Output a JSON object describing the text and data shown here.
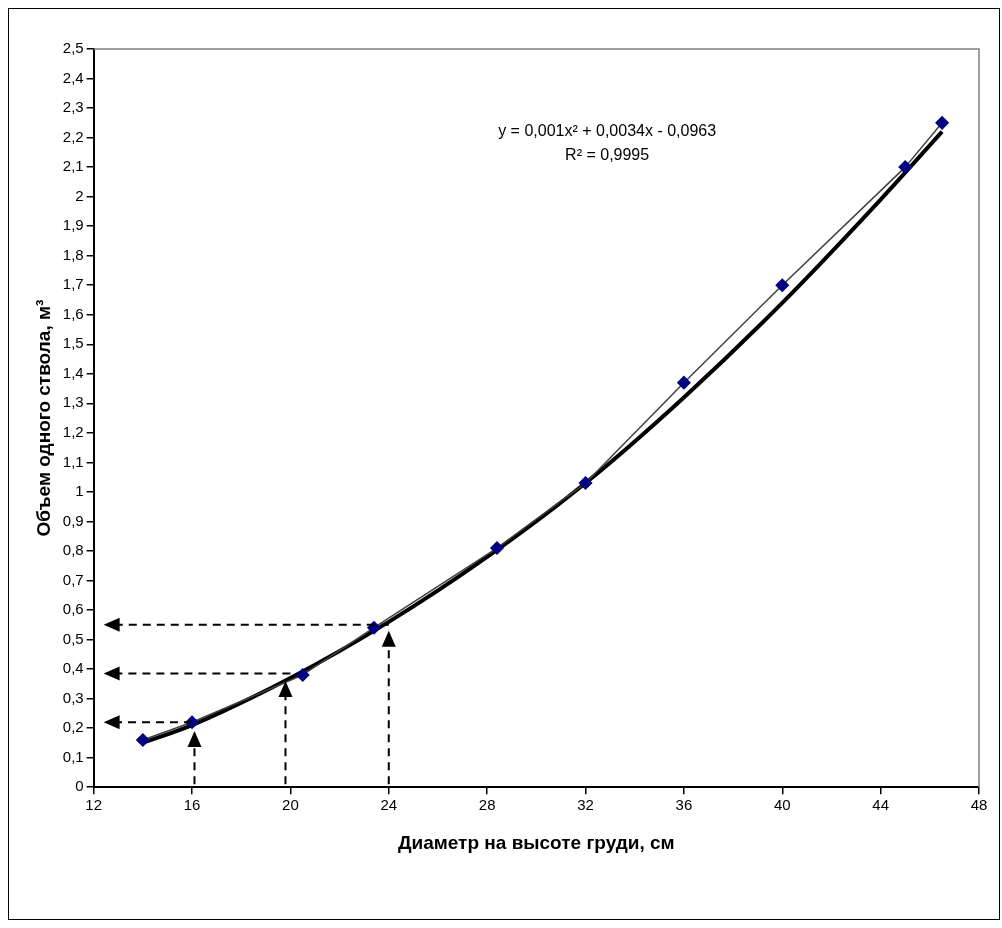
{
  "chart_data": {
    "type": "line",
    "xlabel": "Диаметр на высоте груди, см",
    "ylabel": "Объем одного ствола, м³",
    "xlim": [
      12,
      48
    ],
    "xticks": [
      12,
      16,
      20,
      24,
      28,
      32,
      36,
      40,
      44,
      48
    ],
    "ylim": [
      0,
      2.5
    ],
    "yticks": [
      0,
      {
        "value": 0.1,
        "label": "0,1"
      },
      {
        "value": 0.2,
        "label": "0,2"
      },
      {
        "value": 0.3,
        "label": "0,3"
      },
      {
        "value": 0.4,
        "label": "0,4"
      },
      {
        "value": 0.5,
        "label": "0,5"
      },
      {
        "value": 0.6,
        "label": "0,6"
      },
      {
        "value": 0.7,
        "label": "0,7"
      },
      {
        "value": 0.8,
        "label": "0,8"
      },
      {
        "value": 0.9,
        "label": "0,9"
      },
      1,
      {
        "value": 1.1,
        "label": "1,1"
      },
      {
        "value": 1.2,
        "label": "1,2"
      },
      {
        "value": 1.3,
        "label": "1,3"
      },
      {
        "value": 1.4,
        "label": "1,4"
      },
      {
        "value": 1.5,
        "label": "1,5"
      },
      {
        "value": 1.6,
        "label": "1,6"
      },
      {
        "value": 1.7,
        "label": "1,7"
      },
      {
        "value": 1.8,
        "label": "1,8"
      },
      {
        "value": 1.9,
        "label": "1,9"
      },
      2,
      {
        "value": 2.1,
        "label": "2,1"
      },
      {
        "value": 2.2,
        "label": "2,2"
      },
      {
        "value": 2.3,
        "label": "2,3"
      },
      {
        "value": 2.4,
        "label": "2,4"
      },
      {
        "value": 2.5,
        "label": "2,5"
      }
    ],
    "grid": false,
    "legend": false,
    "series": [
      {
        "color": "#000080",
        "marker": "diamond",
        "x": [
          14,
          16,
          20.5,
          23.4,
          28.4,
          32,
          36,
          40,
          45,
          46.5
        ],
        "values": [
          0.16,
          0.22,
          0.38,
          0.54,
          0.81,
          1.03,
          1.37,
          1.7,
          2.1,
          2.25
        ]
      },
      {
        "color": "#000000",
        "marker": "none",
        "x": [
          14,
          16,
          20,
          24,
          28,
          32,
          36,
          40,
          44,
          46.5
        ],
        "values": [
          0.15,
          0.21,
          0.37,
          0.56,
          0.78,
          1.03,
          1.32,
          1.64,
          1.99,
          2.22
        ]
      }
    ],
    "annotations": [
      "y = 0,001x² + 0,0034x - 0,0963",
      "R² = 0,9995"
    ]
  }
}
